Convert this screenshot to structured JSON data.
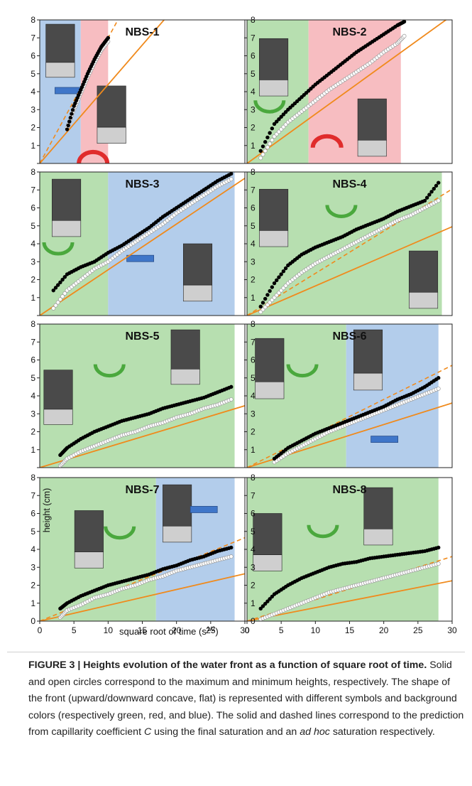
{
  "figure": {
    "ylabel": "height (cm)",
    "xlabel": "square root of time (s",
    "xlabel_sup": "1/2",
    "xlabel_end": ")"
  },
  "caption": {
    "title": "FIGURE 3 | Heights evolution of the water front as a function of square root of time.",
    "text_1": "Solid and open circles correspond to the maximum and minimum heights, respectively. The shape of the front (upward/downward concave, flat) is represented with different symbols and background colors (respectively green, red, and blue). The solid and dashed lines correspond to the prediction from capillarity coefficient",
    "symbol": "C",
    "text_2": "using the final saturation and an",
    "italic_end": "ad hoc",
    "text_3": "saturation respectively."
  },
  "colors": {
    "green": "#b7dfb0",
    "red": "#f7bdc1",
    "blue": "#b3cdeb",
    "orange": "#f08a1c",
    "green_symbol": "#4aa83d",
    "red_symbol": "#e02c2c",
    "blue_symbol": "#3f76c9"
  },
  "chart_data": [
    {
      "type": "scatter",
      "title": "NBS-1",
      "xlim": [
        0,
        30
      ],
      "ylim": [
        0,
        8
      ],
      "bands": [
        {
          "from": 0,
          "to": 6,
          "shape": "flat"
        },
        {
          "from": 6,
          "to": 10,
          "shape": "downward concave"
        }
      ],
      "series": [
        {
          "name": "maximum height",
          "x": [
            4,
            5,
            6,
            7,
            8,
            9,
            10
          ],
          "y": [
            1.9,
            3.2,
            4.1,
            5.0,
            5.8,
            6.5,
            7.0
          ]
        },
        {
          "name": "minimum height",
          "x": [
            4,
            5,
            6,
            7,
            8,
            9,
            10
          ],
          "y": [
            2.0,
            3.0,
            3.9,
            4.8,
            5.6,
            6.3,
            6.8
          ]
        }
      ],
      "solid_line": {
        "slope": 0.44
      },
      "dashed_line": {
        "slope": 0.7
      }
    },
    {
      "type": "scatter",
      "title": "NBS-2",
      "xlim": [
        0,
        30
      ],
      "ylim": [
        0,
        8
      ],
      "bands": [
        {
          "from": 0,
          "to": 9,
          "shape": "upward concave"
        },
        {
          "from": 9,
          "to": 22.5,
          "shape": "downward concave"
        }
      ],
      "series": [
        {
          "name": "maximum height",
          "x": [
            2,
            4,
            6,
            8,
            10,
            12,
            14,
            16,
            18,
            20,
            22,
            23
          ],
          "y": [
            0.7,
            2.2,
            3.0,
            3.7,
            4.4,
            5.0,
            5.6,
            6.2,
            6.7,
            7.2,
            7.7,
            7.9
          ]
        },
        {
          "name": "minimum height",
          "x": [
            2,
            4,
            6,
            8,
            10,
            12,
            14,
            16,
            18,
            20,
            22,
            23
          ],
          "y": [
            0.3,
            1.5,
            2.3,
            2.9,
            3.5,
            4.1,
            4.6,
            5.1,
            5.6,
            6.2,
            6.7,
            7.1
          ]
        }
      ],
      "solid_line": {
        "slope": 0.275
      },
      "dashed_line": null
    },
    {
      "type": "scatter",
      "title": "NBS-3",
      "xlim": [
        0,
        30
      ],
      "ylim": [
        0,
        8
      ],
      "bands": [
        {
          "from": 0,
          "to": 10,
          "shape": "upward concave"
        },
        {
          "from": 10,
          "to": 28.5,
          "shape": "flat"
        }
      ],
      "series": [
        {
          "name": "maximum height",
          "x": [
            2,
            4,
            6,
            8,
            10,
            12,
            14,
            16,
            18,
            20,
            22,
            24,
            26,
            28
          ],
          "y": [
            1.4,
            2.3,
            2.7,
            3.0,
            3.5,
            3.9,
            4.4,
            4.9,
            5.5,
            6.0,
            6.5,
            7.0,
            7.5,
            7.9
          ]
        },
        {
          "name": "minimum height",
          "x": [
            2,
            4,
            6,
            8,
            10,
            12,
            14,
            16,
            18,
            20,
            22,
            24,
            26,
            28
          ],
          "y": [
            0.4,
            1.4,
            2.0,
            2.6,
            3.0,
            3.6,
            4.1,
            4.6,
            5.1,
            5.7,
            6.2,
            6.7,
            7.2,
            7.6
          ]
        }
      ],
      "solid_line": {
        "slope": 0.255
      },
      "dashed_line": null
    },
    {
      "type": "scatter",
      "title": "NBS-4",
      "xlim": [
        0,
        30
      ],
      "ylim": [
        0,
        8
      ],
      "bands": [
        {
          "from": 0,
          "to": 28.5,
          "shape": "upward concave"
        }
      ],
      "series": [
        {
          "name": "maximum height",
          "x": [
            2,
            4,
            6,
            8,
            10,
            12,
            14,
            16,
            18,
            20,
            22,
            24,
            26,
            28
          ],
          "y": [
            0.5,
            1.8,
            2.8,
            3.4,
            3.8,
            4.1,
            4.4,
            4.8,
            5.1,
            5.4,
            5.8,
            6.1,
            6.4,
            7.4
          ]
        },
        {
          "name": "minimum height",
          "x": [
            2,
            4,
            6,
            8,
            10,
            12,
            14,
            16,
            18,
            20,
            22,
            24,
            26,
            28
          ],
          "y": [
            0.2,
            1.0,
            1.8,
            2.4,
            2.9,
            3.3,
            3.7,
            4.1,
            4.5,
            4.9,
            5.3,
            5.6,
            6.0,
            6.4
          ]
        }
      ],
      "solid_line": {
        "slope": 0.165
      },
      "dashed_line": {
        "slope": 0.235
      }
    },
    {
      "type": "scatter",
      "title": "NBS-5",
      "xlim": [
        0,
        30
      ],
      "ylim": [
        0,
        8
      ],
      "bands": [
        {
          "from": 0,
          "to": 28.5,
          "shape": "upward concave"
        }
      ],
      "series": [
        {
          "name": "maximum height",
          "x": [
            3,
            4,
            6,
            8,
            10,
            12,
            14,
            16,
            18,
            20,
            22,
            24,
            26,
            28
          ],
          "y": [
            0.7,
            1.1,
            1.6,
            2.0,
            2.3,
            2.6,
            2.8,
            3.0,
            3.3,
            3.5,
            3.7,
            3.9,
            4.2,
            4.5
          ]
        },
        {
          "name": "minimum height",
          "x": [
            3,
            4,
            6,
            8,
            10,
            12,
            14,
            16,
            18,
            20,
            22,
            24,
            26,
            28
          ],
          "y": [
            0.1,
            0.5,
            0.9,
            1.2,
            1.5,
            1.8,
            2.0,
            2.3,
            2.5,
            2.8,
            3.0,
            3.3,
            3.5,
            3.8
          ]
        }
      ],
      "solid_line": {
        "slope": 0.115
      },
      "dashed_line": null
    },
    {
      "type": "scatter",
      "title": "NBS-6",
      "xlim": [
        0,
        30
      ],
      "ylim": [
        0,
        8
      ],
      "bands": [
        {
          "from": 0,
          "to": 14.5,
          "shape": "upward concave"
        },
        {
          "from": 14.5,
          "to": 28,
          "shape": "flat"
        }
      ],
      "series": [
        {
          "name": "maximum height",
          "x": [
            4,
            6,
            8,
            10,
            12,
            14,
            16,
            18,
            20,
            22,
            24,
            26,
            28
          ],
          "y": [
            0.5,
            1.1,
            1.5,
            1.9,
            2.2,
            2.5,
            2.8,
            3.1,
            3.4,
            3.8,
            4.1,
            4.5,
            5.0
          ]
        },
        {
          "name": "minimum height",
          "x": [
            4,
            6,
            8,
            10,
            12,
            14,
            16,
            18,
            20,
            22,
            24,
            26,
            28
          ],
          "y": [
            0.3,
            0.8,
            1.2,
            1.6,
            2.0,
            2.3,
            2.6,
            2.9,
            3.2,
            3.5,
            3.8,
            4.1,
            4.4
          ]
        }
      ],
      "solid_line": {
        "slope": 0.12
      },
      "dashed_line": {
        "slope": 0.19
      }
    },
    {
      "type": "scatter",
      "title": "NBS-7",
      "xlim": [
        0,
        30
      ],
      "ylim": [
        0,
        8
      ],
      "bands": [
        {
          "from": 0,
          "to": 17,
          "shape": "upward concave"
        },
        {
          "from": 17,
          "to": 28.5,
          "shape": "flat"
        }
      ],
      "series": [
        {
          "name": "maximum height",
          "x": [
            3,
            4,
            6,
            8,
            10,
            12,
            14,
            16,
            18,
            20,
            22,
            24,
            26,
            28
          ],
          "y": [
            0.7,
            1.0,
            1.4,
            1.7,
            2.0,
            2.2,
            2.4,
            2.6,
            2.9,
            3.1,
            3.4,
            3.6,
            3.9,
            4.1
          ]
        },
        {
          "name": "minimum height",
          "x": [
            3,
            4,
            6,
            8,
            10,
            12,
            14,
            16,
            18,
            20,
            22,
            24,
            26,
            28
          ],
          "y": [
            0.2,
            0.6,
            0.9,
            1.3,
            1.5,
            1.8,
            2.0,
            2.3,
            2.5,
            2.8,
            3.0,
            3.2,
            3.4,
            3.6
          ]
        }
      ],
      "solid_line": {
        "slope": 0.088
      },
      "dashed_line": {
        "slope": 0.155
      }
    },
    {
      "type": "scatter",
      "title": "NBS-8",
      "xlim": [
        0,
        30
      ],
      "ylim": [
        0,
        8
      ],
      "bands": [
        {
          "from": 0,
          "to": 28,
          "shape": "upward concave"
        }
      ],
      "series": [
        {
          "name": "maximum height",
          "x": [
            2,
            4,
            6,
            8,
            10,
            12,
            14,
            16,
            18,
            20,
            22,
            24,
            26,
            28
          ],
          "y": [
            0.7,
            1.5,
            2.0,
            2.4,
            2.7,
            3.0,
            3.2,
            3.3,
            3.5,
            3.6,
            3.7,
            3.8,
            3.9,
            4.1
          ]
        },
        {
          "name": "minimum height",
          "x": [
            2,
            4,
            6,
            8,
            10,
            12,
            14,
            16,
            18,
            20,
            22,
            24,
            26,
            28
          ],
          "y": [
            0.1,
            0.4,
            0.7,
            1.0,
            1.3,
            1.6,
            1.8,
            2.0,
            2.2,
            2.4,
            2.6,
            2.8,
            3.0,
            3.2
          ]
        }
      ],
      "solid_line": {
        "slope": 0.075
      },
      "dashed_line": {
        "slope": 0.12
      }
    }
  ]
}
